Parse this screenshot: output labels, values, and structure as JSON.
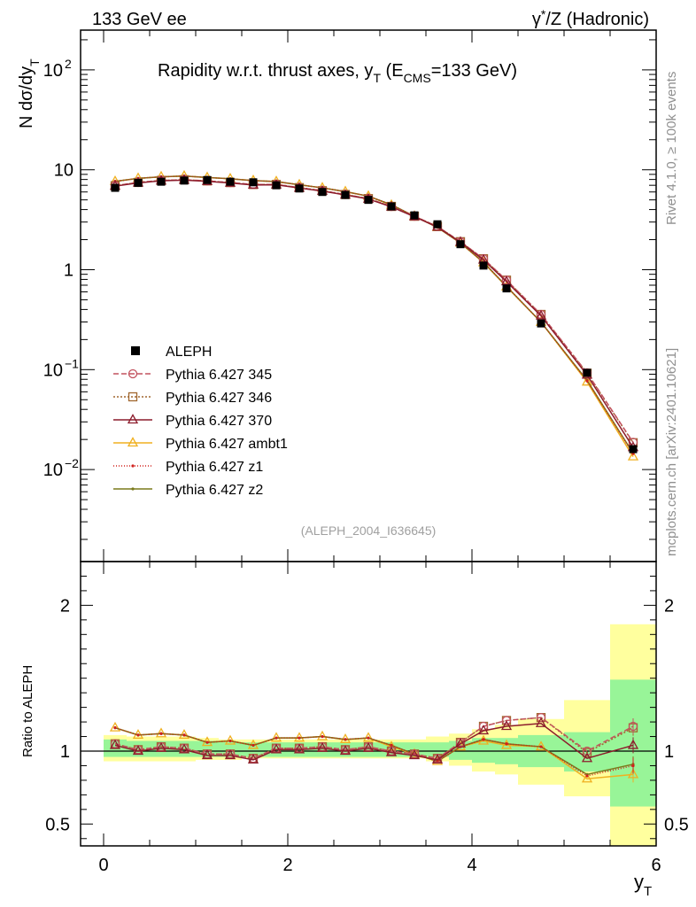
{
  "header": {
    "left": "133 GeV ee",
    "right": "γ*/Z (Hadronic)",
    "right_main": "γ",
    "right_sup": "*",
    "right_rest": "/Z (Hadronic)"
  },
  "side": {
    "rivet": "Rivet 4.1.0, ≥ 100k events",
    "site": "mcplots.cern.ch [arXiv:2401.10621]"
  },
  "chart_data": {
    "type": "line",
    "title": "Rapidity w.r.t. thrust axes, y_T (E_CMS=133 GeV)",
    "title_main": "Rapidity w.r.t. thrust axes, y",
    "title_sub_T": "T",
    "title_open": " (E",
    "title_sub_cms": "CMS",
    "title_close": "=133 GeV)",
    "ylabel": "N dσ/dy_T",
    "ylabel_main": "N  dσ/dy",
    "ylabel_sub": "T",
    "xlabel": "y_T",
    "xlabel_main": "y",
    "xlabel_sub": "T",
    "ratio_ylabel": "Ratio to ALEPH",
    "watermark": "(ALEPH_2004_I636645)",
    "xlim": [
      -0.25,
      6.0
    ],
    "ylim": [
      0.0012,
      250
    ],
    "yscale": "log",
    "ratio_ylim": [
      0.35,
      2.3
    ],
    "x_ticks": [
      "0",
      "2",
      "4",
      "6"
    ],
    "y_ticks": [
      {
        "base": "10",
        "exp": "2"
      },
      {
        "base": "10",
        "exp": ""
      },
      {
        "base": "1",
        "exp": ""
      },
      {
        "base": "10",
        "exp": "−1"
      },
      {
        "base": "10",
        "exp": "−2"
      }
    ],
    "ratio_ticks": [
      "2",
      "1",
      "0.5"
    ],
    "bin_edges": [
      0.0,
      0.25,
      0.5,
      0.75,
      1.0,
      1.25,
      1.5,
      1.75,
      2.0,
      2.25,
      2.5,
      2.75,
      3.0,
      3.25,
      3.5,
      3.75,
      4.0,
      4.25,
      4.5,
      5.0,
      5.5,
      6.0
    ],
    "x": [
      0.125,
      0.375,
      0.625,
      0.875,
      1.125,
      1.375,
      1.625,
      1.875,
      2.125,
      2.375,
      2.625,
      2.875,
      3.125,
      3.375,
      3.625,
      3.875,
      4.125,
      4.375,
      4.75,
      5.25,
      5.75
    ],
    "data": {
      "name": "ALEPH",
      "values": [
        6.6,
        7.4,
        7.6,
        7.8,
        7.9,
        7.6,
        7.5,
        7.0,
        6.5,
        6.0,
        5.6,
        5.0,
        4.3,
        3.5,
        2.85,
        1.8,
        1.1,
        0.65,
        0.29,
        0.093,
        0.016
      ]
    },
    "band_inner": [
      1.08,
      1.07,
      1.07,
      1.07,
      1.07,
      1.06,
      1.06,
      1.06,
      1.06,
      1.06,
      1.06,
      1.06,
      1.06,
      1.06,
      1.06,
      1.07,
      1.09,
      1.09,
      1.11,
      1.13,
      1.49
    ],
    "band_inner_low": [
      0.96,
      0.96,
      0.96,
      0.96,
      0.96,
      0.96,
      0.96,
      0.96,
      0.96,
      0.96,
      0.96,
      0.96,
      0.96,
      0.96,
      0.96,
      0.94,
      0.92,
      0.91,
      0.89,
      0.86,
      0.62
    ],
    "band_outer": [
      1.11,
      1.1,
      1.1,
      1.1,
      1.09,
      1.08,
      1.08,
      1.08,
      1.08,
      1.08,
      1.08,
      1.08,
      1.08,
      1.08,
      1.1,
      1.12,
      1.15,
      1.18,
      1.22,
      1.35,
      1.87
    ],
    "band_outer_low": [
      0.93,
      0.93,
      0.93,
      0.93,
      0.94,
      0.94,
      0.95,
      0.95,
      0.95,
      0.95,
      0.95,
      0.95,
      0.95,
      0.95,
      0.93,
      0.9,
      0.86,
      0.84,
      0.77,
      0.69,
      0.35
    ],
    "series": [
      {
        "name": "Pythia 6.427 345",
        "color": "#c2525e",
        "dash": "6,3",
        "marker": "circle",
        "ratio": [
          1.05,
          1.01,
          1.03,
          1.02,
          0.98,
          0.98,
          0.95,
          1.02,
          1.02,
          1.03,
          1.01,
          1.03,
          1.0,
          0.98,
          0.95,
          1.06,
          1.17,
          1.21,
          1.23,
          1.0,
          1.17
        ]
      },
      {
        "name": "Pythia 6.427 346",
        "color": "#a1672f",
        "dash": "2,2",
        "marker": "square",
        "ratio": [
          1.05,
          1.01,
          1.03,
          1.02,
          0.98,
          0.98,
          0.95,
          1.02,
          1.02,
          1.03,
          1.01,
          1.03,
          1.0,
          0.98,
          0.95,
          1.06,
          1.17,
          1.21,
          1.23,
          0.99,
          1.16
        ]
      },
      {
        "name": "Pythia 6.427 370",
        "color": "#8c1c2c",
        "dash": "",
        "marker": "triangle",
        "ratio": [
          1.04,
          1.0,
          1.02,
          1.01,
          0.97,
          0.97,
          0.94,
          1.01,
          1.01,
          1.02,
          1.0,
          1.02,
          0.99,
          0.97,
          0.94,
          1.05,
          1.14,
          1.17,
          1.19,
          0.95,
          1.04
        ]
      },
      {
        "name": "Pythia 6.427 ambt1",
        "color": "#f0b020",
        "dash": "",
        "marker": "triangle",
        "ratio": [
          1.16,
          1.11,
          1.12,
          1.11,
          1.06,
          1.07,
          1.04,
          1.09,
          1.09,
          1.1,
          1.08,
          1.09,
          1.03,
          0.98,
          0.93,
          1.03,
          1.07,
          1.04,
          1.03,
          0.81,
          0.84
        ]
      },
      {
        "name": "Pythia 6.427 z1",
        "color": "#d0201c",
        "dash": "1,2",
        "marker": "dot",
        "ratio": [
          1.16,
          1.11,
          1.12,
          1.11,
          1.06,
          1.07,
          1.04,
          1.09,
          1.09,
          1.1,
          1.08,
          1.09,
          1.04,
          0.98,
          0.93,
          1.03,
          1.08,
          1.05,
          1.03,
          0.83,
          0.9
        ]
      },
      {
        "name": "Pythia 6.427 z2",
        "color": "#7a7a1c",
        "dash": "",
        "marker": "dot",
        "ratio": [
          1.16,
          1.11,
          1.12,
          1.11,
          1.06,
          1.07,
          1.04,
          1.09,
          1.09,
          1.1,
          1.08,
          1.09,
          1.04,
          0.98,
          0.93,
          1.03,
          1.08,
          1.05,
          1.03,
          0.84,
          0.91
        ]
      }
    ]
  }
}
